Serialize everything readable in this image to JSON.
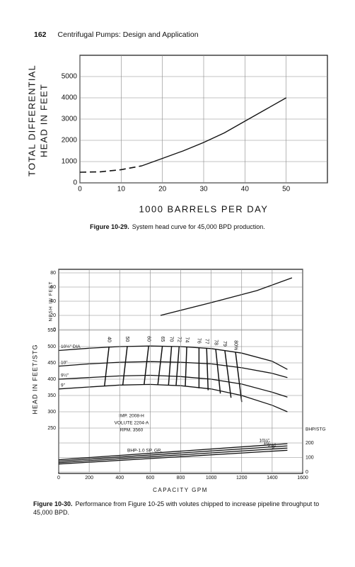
{
  "header": {
    "page_number": "162",
    "title": "Centrifugal Pumps: Design and Application"
  },
  "chart_data": [
    {
      "type": "line",
      "xlabel": "1000 BARRELS PER DAY",
      "ylabel": [
        "TOTAL DIFFERENTIAL",
        "HEAD IN FEET"
      ],
      "xlim": [
        0,
        60
      ],
      "ylim": [
        0,
        6000
      ],
      "xticks": [
        0,
        10,
        20,
        30,
        40,
        50
      ],
      "yticks": [
        0,
        1000,
        2000,
        3000,
        4000,
        5000
      ],
      "grid": true,
      "color": "#111",
      "series": [
        {
          "style": "dashed",
          "x": [
            0,
            5,
            10,
            15
          ],
          "values": [
            500,
            520,
            620,
            800
          ]
        },
        {
          "style": "solid",
          "x": [
            15,
            20,
            25,
            30,
            35,
            40,
            45,
            50
          ],
          "values": [
            800,
            1150,
            1500,
            1900,
            2350,
            2900,
            3450,
            4000
          ]
        }
      ]
    },
    {
      "type": "line",
      "ylabel": "NPSH IN FEET",
      "xlim": [
        0,
        1600
      ],
      "ylim": [
        0,
        80
      ],
      "yticks": [
        0,
        20,
        40,
        60,
        80
      ],
      "grid": true,
      "color": "#111",
      "series": [
        {
          "style": "solid",
          "x": [
            668,
            1000,
            1300,
            1530
          ],
          "values": [
            20,
            38,
            55,
            73
          ]
        }
      ]
    },
    {
      "type": "line",
      "ylabel": "HEAD IN FEET/STG",
      "xlim": [
        0,
        1600
      ],
      "ylim": [
        250,
        550
      ],
      "yticks": [
        250,
        300,
        350,
        400,
        450,
        500,
        550
      ],
      "grid": true,
      "color": "#111",
      "series_label": "start",
      "series": [
        {
          "name": "10½\" DIA",
          "x": [
            0,
            200,
            400,
            600,
            800,
            1000,
            1200,
            1400,
            1500
          ],
          "values": [
            488,
            495,
            500,
            502,
            500,
            494,
            480,
            455,
            430
          ]
        },
        {
          "name": "10\"",
          "x": [
            0,
            200,
            400,
            600,
            800,
            1000,
            1200,
            1400,
            1500
          ],
          "values": [
            440,
            447,
            452,
            454,
            452,
            447,
            435,
            418,
            405
          ]
        },
        {
          "name": "9½\"",
          "x": [
            0,
            200,
            400,
            600,
            800,
            1000,
            1200,
            1400,
            1500
          ],
          "values": [
            400,
            405,
            410,
            412,
            408,
            400,
            385,
            360,
            345
          ]
        },
        {
          "name": "9\"",
          "x": [
            0,
            200,
            400,
            600,
            800,
            1000,
            1200,
            1400,
            1500
          ],
          "values": [
            370,
            376,
            382,
            384,
            380,
            370,
            350,
            320,
            300
          ]
        }
      ],
      "efficiency_lines": [
        {
          "name": "40",
          "x": [
            330,
            300
          ],
          "values": [
            500,
            378
          ]
        },
        {
          "name": "50",
          "x": [
            450,
            420
          ],
          "values": [
            501,
            381
          ]
        },
        {
          "name": "60",
          "x": [
            590,
            560
          ],
          "values": [
            502,
            384
          ]
        },
        {
          "name": "65",
          "x": [
            680,
            650
          ],
          "values": [
            501,
            383
          ]
        },
        {
          "name": "70",
          "x": [
            740,
            720
          ],
          "values": [
            501,
            382
          ]
        },
        {
          "name": "72",
          "x": [
            790,
            770
          ],
          "values": [
            500,
            381
          ]
        },
        {
          "name": "74",
          "x": [
            840,
            830
          ],
          "values": [
            499,
            378
          ]
        },
        {
          "name": "76",
          "x": [
            920,
            920
          ],
          "values": [
            496,
            372
          ]
        },
        {
          "name": "77",
          "x": [
            970,
            980
          ],
          "values": [
            494,
            366
          ]
        },
        {
          "name": "78",
          "x": [
            1030,
            1060
          ],
          "values": [
            491,
            356
          ]
        },
        {
          "name": "79",
          "x": [
            1090,
            1130
          ],
          "values": [
            487,
            343
          ]
        },
        {
          "name": "80%",
          "x": [
            1160,
            1200
          ],
          "values": [
            482,
            330
          ]
        }
      ],
      "annotations": [
        "IMP. 2008-H",
        "VOLUTE 2204-A",
        "RPM. 3560"
      ]
    },
    {
      "type": "line",
      "xlabel": "CAPACITY GPM",
      "ylabel": "BHP/STG",
      "xlim": [
        0,
        1600
      ],
      "ylim": [
        0,
        200
      ],
      "xticks": [
        0,
        200,
        400,
        600,
        800,
        1000,
        1200,
        1400,
        1600
      ],
      "yticks": [
        0,
        100,
        200
      ],
      "grid": true,
      "color": "#111",
      "series_label": "end",
      "series": [
        {
          "name": "10½\"",
          "x": [
            0,
            1500
          ],
          "values": [
            85,
            195
          ]
        },
        {
          "name": "10\"",
          "x": [
            0,
            1500
          ],
          "values": [
            75,
            180
          ]
        },
        {
          "name": "9½\"",
          "x": [
            0,
            1500
          ],
          "values": [
            65,
            165
          ]
        },
        {
          "name": "9\"",
          "x": [
            0,
            1500
          ],
          "values": [
            55,
            150
          ]
        }
      ],
      "annotations": [
        "BHP-1.0 SP. GR."
      ]
    }
  ],
  "captions": [
    {
      "label": "Figure 10-29.",
      "text": "System head curve for 45,000 BPD production."
    },
    {
      "label": "Figure 10-30.",
      "text": "Performance from Figure 10-25 with volutes chipped to increase pipeline throughput to 45,000 BPD."
    }
  ]
}
